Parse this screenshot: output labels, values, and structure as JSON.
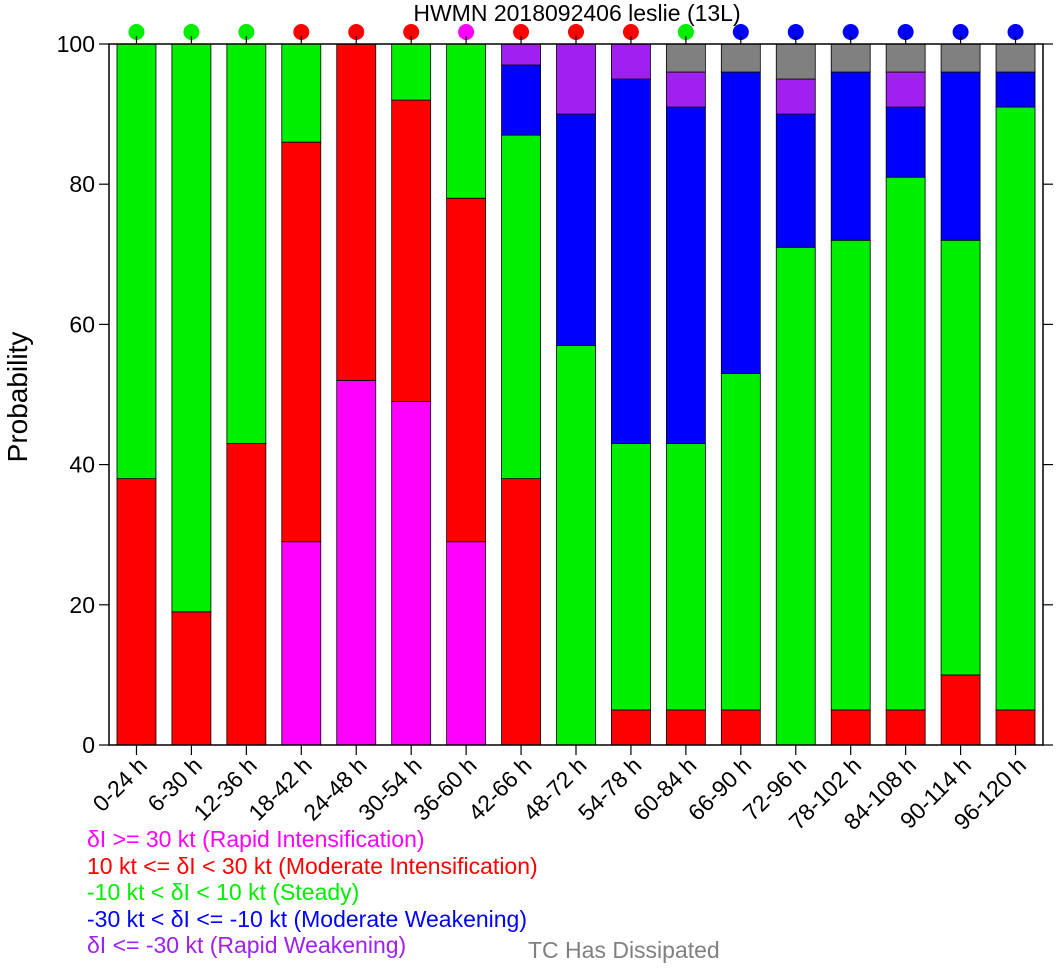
{
  "chart_data": {
    "type": "bar",
    "stacked": true,
    "title": "HWMN 2018092406 leslie (13L)",
    "ylabel": "Probability",
    "xlabel": "",
    "ylim": [
      0,
      100
    ],
    "yticks": [
      "0",
      "20",
      "40",
      "60",
      "80",
      "100"
    ],
    "categories": [
      "0-24 h",
      "6-30 h",
      "12-36 h",
      "18-42 h",
      "24-48 h",
      "30-54 h",
      "36-60 h",
      "42-66 h",
      "48-72 h",
      "54-78 h",
      "60-84 h",
      "66-90 h",
      "72-96 h",
      "78-102 h",
      "84-108 h",
      "90-114 h",
      "96-120 h"
    ],
    "series": [
      {
        "key": "ri",
        "color": "#ff00ff",
        "values": [
          0,
          0,
          0,
          29,
          52,
          49,
          29,
          0,
          0,
          0,
          0,
          0,
          0,
          0,
          0,
          0,
          0
        ]
      },
      {
        "key": "mi",
        "color": "#ff0000",
        "values": [
          38,
          19,
          43,
          57,
          48,
          43,
          49,
          38,
          0,
          5,
          5,
          5,
          0,
          5,
          5,
          10,
          5
        ]
      },
      {
        "key": "st",
        "color": "#00ee00",
        "values": [
          62,
          81,
          57,
          14,
          0,
          8,
          22,
          49,
          57,
          38,
          38,
          48,
          71,
          67,
          76,
          62,
          86
        ]
      },
      {
        "key": "mw",
        "color": "#0000ff",
        "values": [
          0,
          0,
          0,
          0,
          0,
          0,
          0,
          10,
          33,
          52,
          48,
          43,
          19,
          24,
          10,
          24,
          5
        ]
      },
      {
        "key": "rw",
        "color": "#a020f0",
        "values": [
          0,
          0,
          0,
          0,
          0,
          0,
          0,
          3,
          10,
          5,
          5,
          0,
          5,
          0,
          5,
          0,
          0
        ]
      },
      {
        "key": "dis",
        "color": "#808080",
        "values": [
          0,
          0,
          0,
          0,
          0,
          0,
          0,
          0,
          0,
          0,
          4,
          4,
          5,
          4,
          4,
          4,
          4
        ]
      }
    ],
    "indicator_colors": [
      "#00ee00",
      "#00ee00",
      "#00ee00",
      "#ff0000",
      "#ff0000",
      "#ff0000",
      "#ff00ff",
      "#ff0000",
      "#ff0000",
      "#ff0000",
      "#00ee00",
      "#0000ff",
      "#0000ff",
      "#0000ff",
      "#0000ff",
      "#0000ff",
      "#0000ff"
    ],
    "grid": false,
    "legend_position": "bottom-left"
  },
  "legend": {
    "items": [
      {
        "text": "δI >= 30 kt (Rapid Intensification)",
        "color": "#ff00ff"
      },
      {
        "text": "10 kt <= δI < 30 kt (Moderate Intensification)",
        "color": "#ff0000"
      },
      {
        "text": "-10 kt < δI < 10 kt (Steady)",
        "color": "#00ee00"
      },
      {
        "text": "-30 kt < δI <= -10 kt (Moderate Weakening)",
        "color": "#0000ff"
      },
      {
        "text": "δI <= -30 kt (Rapid Weakening)",
        "color": "#a020f0"
      }
    ],
    "dissipated": {
      "text": "TC Has Dissipated",
      "color": "#808080"
    }
  }
}
